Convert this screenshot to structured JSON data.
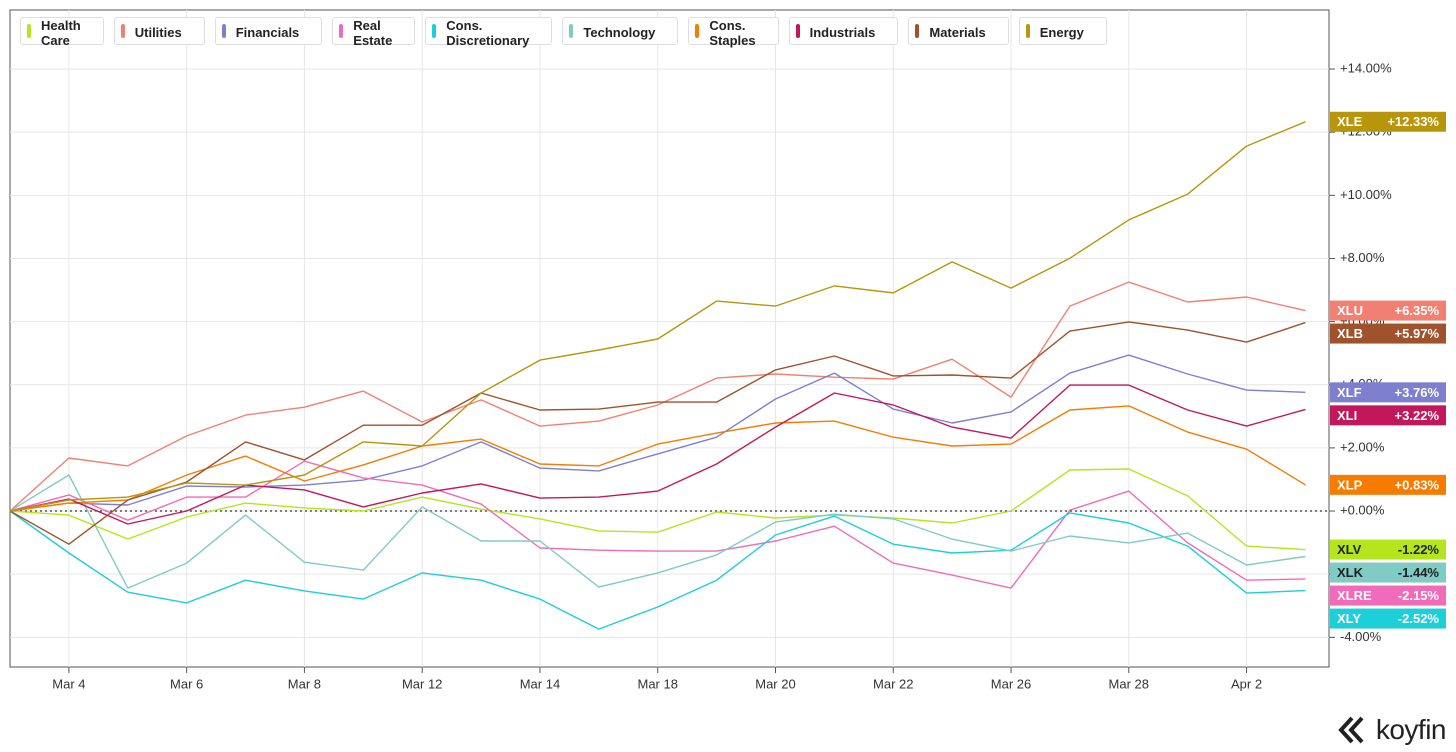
{
  "chart_data": {
    "type": "line",
    "categories": [
      null,
      "Mar 4",
      null,
      "Mar 6",
      null,
      "Mar 8",
      null,
      "Mar 12",
      null,
      "Mar 14",
      null,
      "Mar 18",
      null,
      "Mar 20",
      null,
      "Mar 22",
      null,
      "Mar 26",
      null,
      "Mar 28",
      null,
      "Apr 2",
      null
    ],
    "ylim": [
      -4.94,
      15.87
    ],
    "yticks": [
      {
        "value": -4,
        "label": "-4.00%"
      },
      {
        "value": -2,
        "label": "-2.00%"
      },
      {
        "value": 0,
        "label": "+0.00%"
      },
      {
        "value": 2,
        "label": "+2.00%"
      },
      {
        "value": 4,
        "label": "+4.00%"
      },
      {
        "value": 6,
        "label": "+6.00%"
      },
      {
        "value": 8,
        "label": "+8.00%"
      },
      {
        "value": 10,
        "label": "+10.00%"
      },
      {
        "value": 12,
        "label": "+12.00%"
      },
      {
        "value": 14,
        "label": "+14.00%"
      }
    ],
    "grid": true,
    "zero_line": true,
    "series": [
      {
        "name": "Health Care",
        "ticker": "XLV",
        "end_label": "-1.22%",
        "color": "#b5e61d",
        "values": [
          0,
          -0.13,
          -0.89,
          -0.19,
          0.25,
          0.1,
          0,
          0.44,
          0.06,
          -0.25,
          -0.63,
          -0.67,
          -0.03,
          -0.22,
          -0.13,
          -0.22,
          -0.38,
          0,
          1.3,
          1.33,
          0.48,
          -1.11,
          -1.22
        ]
      },
      {
        "name": "Utilities",
        "ticker": "XLU",
        "end_label": "+6.35%",
        "color": "#f28072",
        "values": [
          0,
          1.68,
          1.43,
          2.38,
          3.04,
          3.29,
          3.8,
          2.82,
          3.52,
          2.69,
          2.85,
          3.36,
          4.21,
          4.34,
          4.24,
          4.18,
          4.81,
          3.61,
          6.49,
          7.25,
          6.62,
          6.78,
          6.35
        ]
      },
      {
        "name": "Financials",
        "ticker": "XLF",
        "end_label": "+3.76%",
        "color": "#7f7fd0",
        "values": [
          0,
          0.25,
          0.19,
          0.79,
          0.76,
          0.82,
          0.98,
          1.43,
          2.19,
          1.36,
          1.27,
          1.81,
          2.34,
          3.55,
          4.37,
          3.23,
          2.79,
          3.14,
          4.37,
          4.94,
          4.34,
          3.83,
          3.76
        ]
      },
      {
        "name": "Real Estate",
        "ticker": "XLRE",
        "end_label": "-2.15%",
        "color": "#f06bb9",
        "values": [
          0,
          0.51,
          -0.29,
          0.44,
          0.44,
          1.58,
          1.05,
          0.82,
          0.22,
          -1.17,
          -1.24,
          -1.27,
          -1.27,
          -0.95,
          -0.48,
          -1.65,
          -2.03,
          -2.44,
          0.03,
          0.63,
          -1.01,
          -2.19,
          -2.15
        ]
      },
      {
        "name": "Cons. Discretionary",
        "ticker": "XLY",
        "end_label": "-2.52%",
        "color": "#1ccfd9",
        "values": [
          0,
          -1.33,
          -2.57,
          -2.91,
          -2.19,
          -2.53,
          -2.79,
          -1.96,
          -2.19,
          -2.79,
          -3.74,
          -3.04,
          -2.19,
          -0.76,
          -0.16,
          -1.05,
          -1.33,
          -1.24,
          -0.06,
          -0.38,
          -1.11,
          -2.6,
          -2.52
        ]
      },
      {
        "name": "Technology",
        "ticker": "XLK",
        "end_label": "-1.44%",
        "color": "#80cbc4",
        "values": [
          0,
          1.14,
          -2.44,
          -1.65,
          -0.13,
          -1.62,
          -1.87,
          0.13,
          -0.95,
          -0.95,
          -2.41,
          -1.96,
          -1.39,
          -0.35,
          -0.1,
          -0.25,
          -0.89,
          -1.27,
          -0.79,
          -1.01,
          -0.7,
          -1.71,
          -1.44
        ]
      },
      {
        "name": "Cons. Staples",
        "ticker": "XLP",
        "end_label": "+0.83%",
        "color": "#f57c00",
        "values": [
          0,
          0.25,
          0.35,
          1.14,
          1.74,
          0.95,
          1.46,
          2.06,
          2.28,
          1.49,
          1.43,
          2.12,
          2.47,
          2.79,
          2.85,
          2.34,
          2.06,
          2.12,
          3.2,
          3.33,
          2.5,
          1.96,
          0.83
        ]
      },
      {
        "name": "Industrials",
        "ticker": "XLI",
        "end_label": "+3.22%",
        "color": "#c2185b",
        "values": [
          0,
          0.38,
          -0.41,
          0,
          0.82,
          0.67,
          0.13,
          0.57,
          0.86,
          0.41,
          0.44,
          0.63,
          1.49,
          2.66,
          3.74,
          3.36,
          2.66,
          2.31,
          3.99,
          3.99,
          3.2,
          2.69,
          3.22
        ]
      },
      {
        "name": "Materials",
        "ticker": "XLB",
        "end_label": "+5.97%",
        "color": "#a0522d",
        "values": [
          0,
          -1.05,
          0.35,
          0.92,
          2.19,
          1.62,
          2.72,
          2.72,
          3.74,
          3.2,
          3.23,
          3.45,
          3.45,
          4.47,
          4.91,
          4.28,
          4.31,
          4.21,
          5.7,
          5.99,
          5.73,
          5.35,
          5.97
        ]
      },
      {
        "name": "Energy",
        "ticker": "XLE",
        "end_label": "+12.33%",
        "color": "#b8960b",
        "values": [
          0,
          0.35,
          0.44,
          0.89,
          0.82,
          1.14,
          2.19,
          2.06,
          3.74,
          4.78,
          5.1,
          5.45,
          6.65,
          6.49,
          7.13,
          6.91,
          7.89,
          7.06,
          8.01,
          9.22,
          10.04,
          11.56,
          12.33
        ]
      }
    ]
  },
  "brand": "koyfin"
}
